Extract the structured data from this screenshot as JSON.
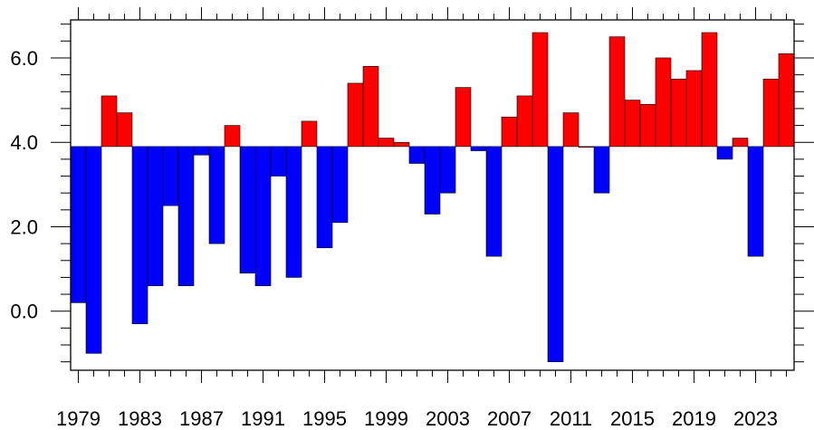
{
  "chart_data": {
    "type": "bar",
    "title": "",
    "xlabel": "",
    "ylabel": "",
    "baseline": 3.9,
    "xlim": [
      1978.5,
      2025.5
    ],
    "ylim": [
      -1.4,
      6.9
    ],
    "x_tick_labels": [
      "1979",
      "1983",
      "1987",
      "1991",
      "1995",
      "1999",
      "2003",
      "2007",
      "2011",
      "2015",
      "2019",
      "2023"
    ],
    "y_tick_labels": [
      "0.0",
      "2.0",
      "4.0",
      "6.0"
    ],
    "y_tick_values": [
      0,
      2,
      4,
      6
    ],
    "colors": {
      "above": "#ff0000",
      "below": "#0000ff",
      "outline": "#000000"
    },
    "grid": false,
    "categories": [
      1979,
      1980,
      1981,
      1982,
      1983,
      1984,
      1985,
      1986,
      1987,
      1988,
      1989,
      1990,
      1991,
      1992,
      1993,
      1994,
      1995,
      1996,
      1997,
      1998,
      1999,
      2000,
      2001,
      2002,
      2003,
      2004,
      2005,
      2006,
      2007,
      2008,
      2009,
      2010,
      2011,
      2012,
      2013,
      2014,
      2015,
      2016,
      2017,
      2018,
      2019,
      2020,
      2021,
      2022,
      2023,
      2024,
      2025
    ],
    "values": [
      0.2,
      -1.0,
      5.1,
      4.7,
      -0.3,
      0.6,
      2.5,
      0.6,
      3.7,
      1.6,
      4.4,
      0.9,
      0.6,
      3.2,
      0.8,
      4.5,
      1.5,
      2.1,
      5.4,
      5.8,
      4.1,
      4.0,
      3.5,
      2.3,
      2.8,
      5.3,
      3.8,
      1.3,
      4.6,
      5.1,
      6.6,
      -1.2,
      4.7,
      3.9,
      2.8,
      6.5,
      5.0,
      4.9,
      6.0,
      5.5,
      5.7,
      6.6,
      3.6,
      4.1,
      1.3,
      5.5,
      6.1
    ]
  }
}
